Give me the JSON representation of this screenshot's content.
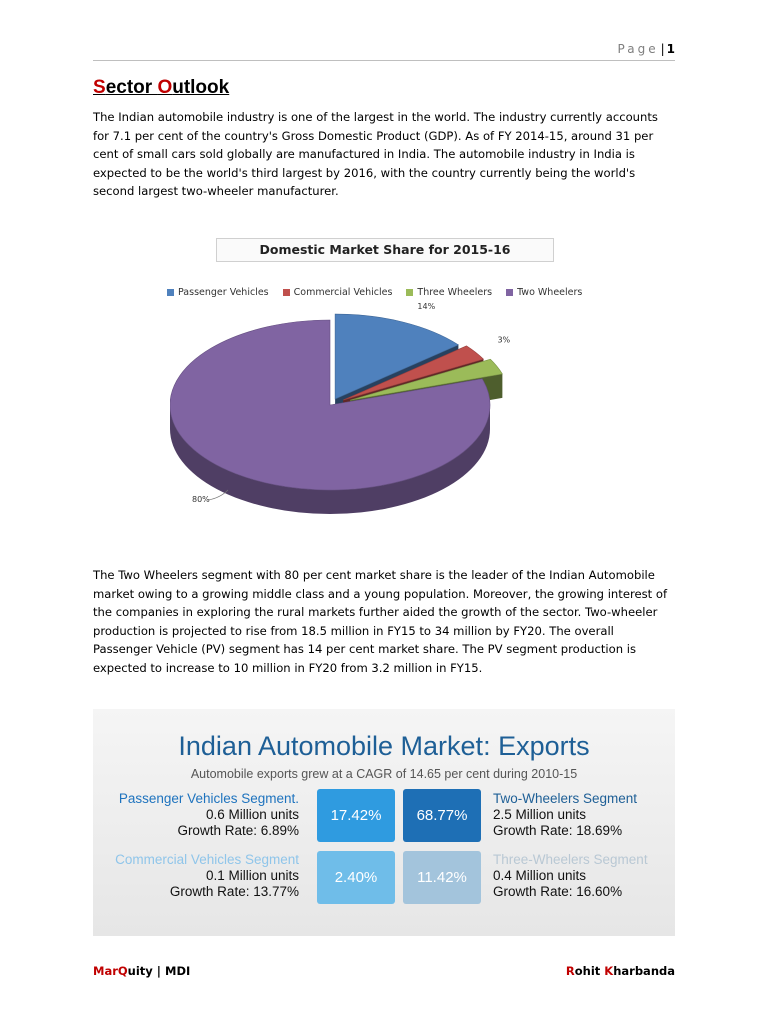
{
  "header": {
    "page_word": "Page",
    "separator": "|",
    "page_number": "1"
  },
  "title": {
    "first_initial": "S",
    "first_rest": "ector ",
    "second_initial": "O",
    "second_rest": "utlook"
  },
  "paragraph1": "The Indian automobile industry is one of the largest in the world. The industry currently accounts for 7.1 per cent of the country's Gross Domestic Product (GDP). As of FY 2014-15, around 31 per cent of small cars sold globally are manufactured in India. The automobile industry in India is expected to be the world's third largest by 2016, with the country currently being the world's second largest two-wheeler manufacturer.",
  "chart_data": {
    "type": "pie",
    "title": "Domestic Market Share for 2015-16",
    "legend_position": "top",
    "categories": [
      "Passenger Vehicles",
      "Commercial Vehicles",
      "Three Wheelers",
      "Two Wheelers"
    ],
    "values": [
      14,
      3,
      3,
      80
    ],
    "labels": [
      "14%",
      "3%",
      "3%",
      "80%"
    ],
    "colors": [
      "#4f81bd",
      "#c0504d",
      "#9bbb59",
      "#8064a2"
    ]
  },
  "paragraph2": "The Two Wheelers segment with 80 per cent market share is the leader of the Indian Automobile market owing to a growing middle class and a young population. Moreover, the growing interest of the companies in exploring the rural markets further aided the growth of the sector. Two-wheeler production is projected to rise from 18.5 million in FY15 to 34 million by FY20. The overall Passenger Vehicle (PV) segment has 14 per cent market share. The PV segment production is expected to increase to 10 million in FY20 from 3.2 million in FY15.",
  "infographic": {
    "title": "Indian Automobile Market: Exports",
    "subtitle": "Automobile exports grew at a CAGR of 14.65 per cent during 2010-15",
    "segments": [
      {
        "name": "Passenger Vehicles Segment.",
        "units": "0.6 Million units",
        "growth": "Growth Rate: 6.89%",
        "share": "17.42%"
      },
      {
        "name": "Two-Wheelers Segment",
        "units": "2.5 Million units",
        "growth": "Growth Rate: 18.69%",
        "share": "68.77%"
      },
      {
        "name": "Commercial Vehicles Segment",
        "units": "0.1 Million units",
        "growth": "Growth Rate: 13.77%",
        "share": "2.40%"
      },
      {
        "name": "Three-Wheelers Segment",
        "units": "0.4 Million units",
        "growth": "Growth Rate: 16.60%",
        "share": "11.42%"
      }
    ]
  },
  "footer": {
    "left": {
      "a": "Mar",
      "b": "Q",
      "c": "uity | MDI"
    },
    "right": {
      "a": "R",
      "b": "ohit ",
      "c": "K",
      "d": "harbanda"
    }
  }
}
